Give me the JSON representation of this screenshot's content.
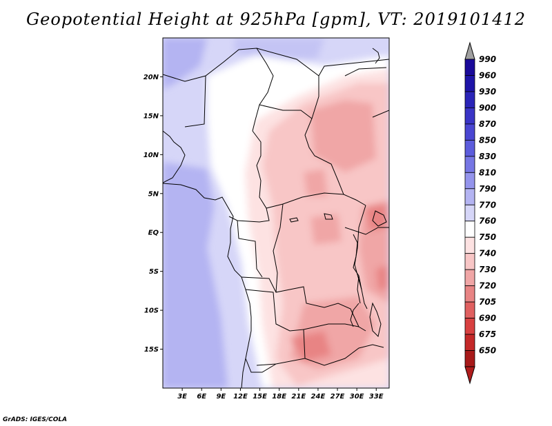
{
  "title": "Geopotential Height at 925hPa [gpm], VT: 2019101412",
  "credit": "GrADS: IGES/COLA",
  "map": {
    "lon_range": [
      0,
      35
    ],
    "lat_range": [
      -20,
      25
    ],
    "lat_ticks": [
      {
        "value": 20,
        "label": "20N"
      },
      {
        "value": 15,
        "label": "15N"
      },
      {
        "value": 10,
        "label": "10N"
      },
      {
        "value": 5,
        "label": "5N"
      },
      {
        "value": 0,
        "label": "EQ"
      },
      {
        "value": -5,
        "label": "5S"
      },
      {
        "value": -10,
        "label": "10S"
      },
      {
        "value": -15,
        "label": "15S"
      }
    ],
    "lon_ticks": [
      {
        "value": 3,
        "label": "3E"
      },
      {
        "value": 6,
        "label": "6E"
      },
      {
        "value": 9,
        "label": "9E"
      },
      {
        "value": 12,
        "label": "12E"
      },
      {
        "value": 15,
        "label": "15E"
      },
      {
        "value": 18,
        "label": "18E"
      },
      {
        "value": 21,
        "label": "21E"
      },
      {
        "value": 24,
        "label": "24E"
      },
      {
        "value": 27,
        "label": "27E"
      },
      {
        "value": 30,
        "label": "30E"
      },
      {
        "value": 33,
        "label": "33E"
      }
    ]
  },
  "colorbar": {
    "levels": [
      {
        "label": "990",
        "color": "#1a0a9a"
      },
      {
        "label": "960",
        "color": "#1e14a8"
      },
      {
        "label": "930",
        "color": "#2a24b8"
      },
      {
        "label": "900",
        "color": "#3a34c6"
      },
      {
        "label": "870",
        "color": "#4a46d2"
      },
      {
        "label": "850",
        "color": "#5c5cdc"
      },
      {
        "label": "830",
        "color": "#7676e4"
      },
      {
        "label": "810",
        "color": "#9494ec"
      },
      {
        "label": "790",
        "color": "#b4b4f2"
      },
      {
        "label": "770",
        "color": "#d6d6f8"
      },
      {
        "label": "760",
        "color": "#ffffff"
      },
      {
        "label": "750",
        "color": "#fde2e2"
      },
      {
        "label": "740",
        "color": "#f8c6c6"
      },
      {
        "label": "730",
        "color": "#f0a6a6"
      },
      {
        "label": "720",
        "color": "#e88484"
      },
      {
        "label": "705",
        "color": "#e06060"
      },
      {
        "label": "690",
        "color": "#d84040"
      },
      {
        "label": "675",
        "color": "#c42828"
      },
      {
        "label": "650",
        "color": "#a81a1a"
      }
    ],
    "top_arrow_color": "#a0a0a0",
    "bottom_arrow_color": "#b01c1c"
  }
}
